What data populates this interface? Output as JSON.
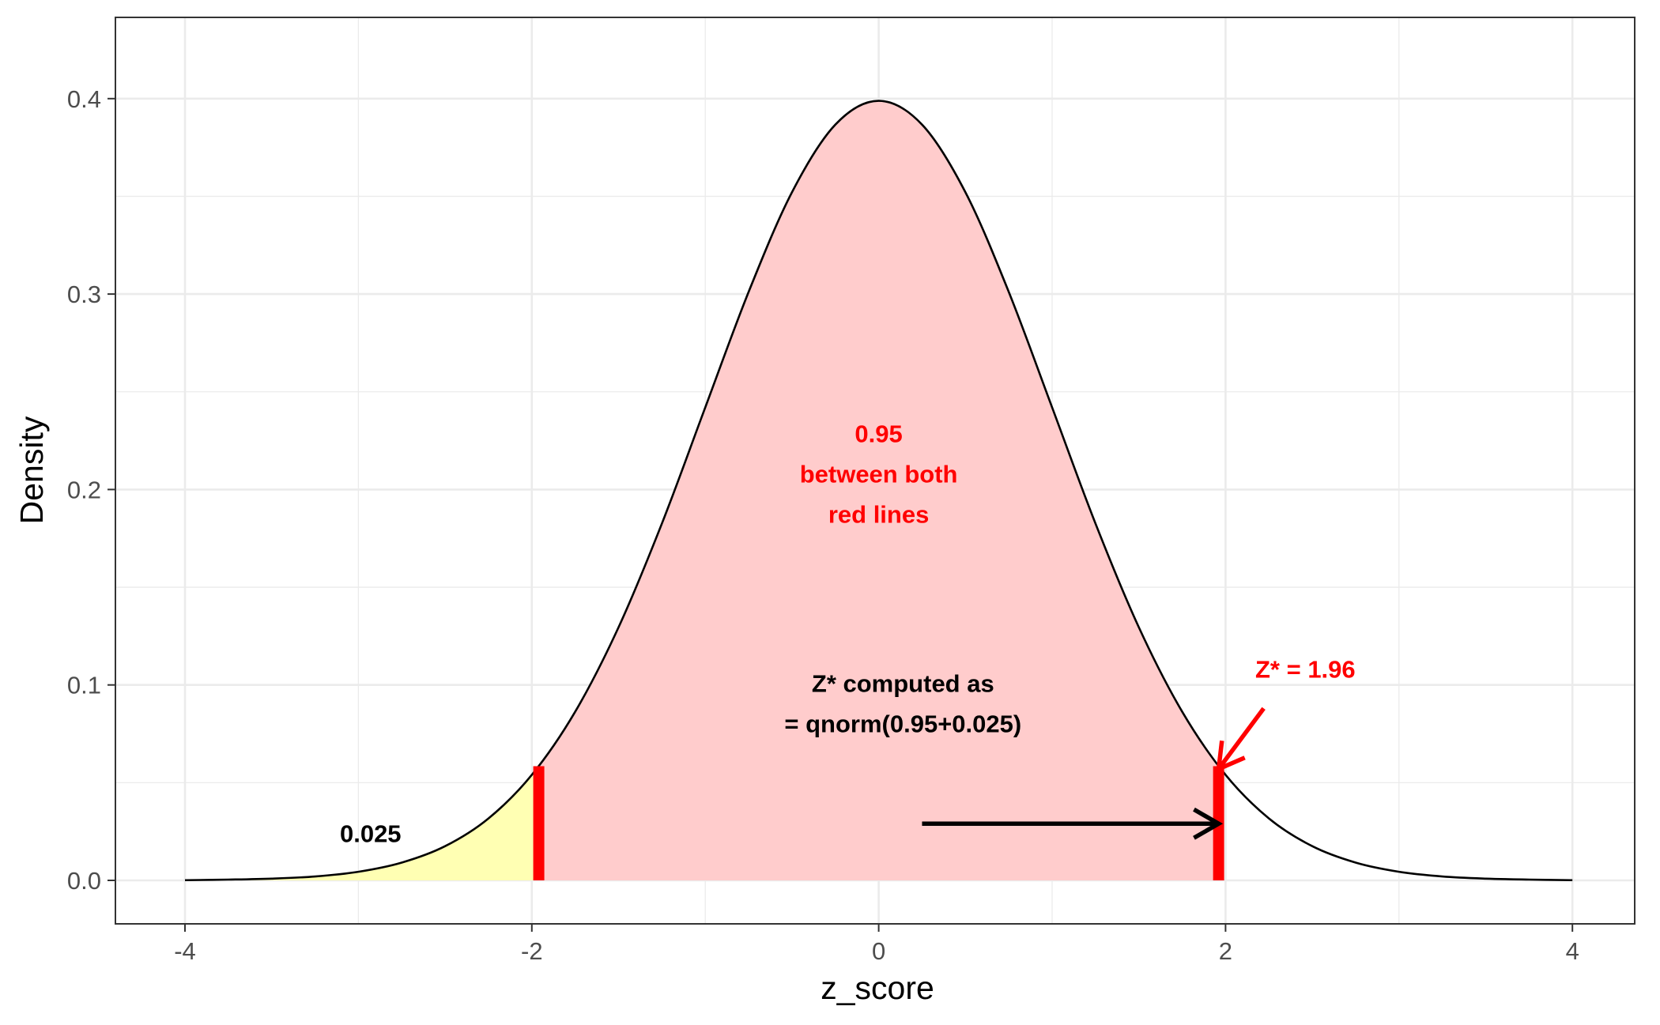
{
  "chart_data": {
    "type": "area",
    "title": "",
    "xlabel": "z_score",
    "ylabel": "Density",
    "xlim": [
      -4,
      4
    ],
    "ylim": [
      0,
      0.4
    ],
    "x_ticks": [
      -4,
      -2,
      0,
      2,
      4
    ],
    "x_tick_labels": [
      "-4",
      "-2",
      "0",
      "2",
      "4"
    ],
    "y_ticks": [
      0,
      0.1,
      0.2,
      0.3,
      0.4
    ],
    "y_tick_labels": [
      "0.0",
      "0.1",
      "0.2",
      "0.3",
      "0.4"
    ],
    "grid": true,
    "curve": {
      "x": [
        -4.0,
        -3.75,
        -3.5,
        -3.25,
        -3.0,
        -2.75,
        -2.5,
        -2.25,
        -2.0,
        -1.75,
        -1.5,
        -1.25,
        -1.0,
        -0.75,
        -0.5,
        -0.25,
        0.0,
        0.25,
        0.5,
        0.75,
        1.0,
        1.25,
        1.5,
        1.75,
        2.0,
        2.25,
        2.5,
        2.75,
        3.0,
        3.25,
        3.5,
        3.75,
        4.0
      ],
      "y": [
        0.0001,
        0.0004,
        0.0009,
        0.002,
        0.0044,
        0.0091,
        0.0175,
        0.0317,
        0.054,
        0.0863,
        0.1295,
        0.1826,
        0.242,
        0.3011,
        0.3521,
        0.3867,
        0.3989,
        0.3867,
        0.3521,
        0.3011,
        0.242,
        0.1826,
        0.1295,
        0.0863,
        0.054,
        0.0317,
        0.0175,
        0.0091,
        0.0044,
        0.002,
        0.0009,
        0.0004,
        0.0001
      ],
      "color": "#000000"
    },
    "shaded_regions": [
      {
        "from": -4,
        "to": -1.96,
        "color": "#ffffb3"
      },
      {
        "from": -1.96,
        "to": 1.96,
        "color": "#ffcccc"
      }
    ],
    "vertical_lines": [
      {
        "x": -1.96,
        "color": "#ff0000"
      },
      {
        "x": 1.96,
        "color": "#ff0000"
      }
    ],
    "arrows": [
      {
        "from": [
          0.25,
          0.029
        ],
        "to": [
          1.96,
          0.029
        ],
        "color": "#000000"
      },
      {
        "from": [
          2.22,
          0.088
        ],
        "to": [
          1.96,
          0.057
        ],
        "color": "#ff0000"
      }
    ],
    "annotations": [
      {
        "lines": [
          "0.95",
          "between both",
          "red lines"
        ],
        "x": 0,
        "y": 0.208,
        "color": "#ff0000"
      },
      {
        "lines": [
          "Z* computed as",
          "= qnorm(0.95+0.025)"
        ],
        "x": 0.14,
        "y": 0.0905,
        "color": "#000000"
      },
      {
        "lines": [
          "Z* = 1.96"
        ],
        "x": 2.46,
        "y": 0.1082,
        "color": "#ff0000"
      },
      {
        "lines": [
          "0.025"
        ],
        "x": -2.93,
        "y": 0.0241,
        "color": "#000000"
      }
    ]
  }
}
